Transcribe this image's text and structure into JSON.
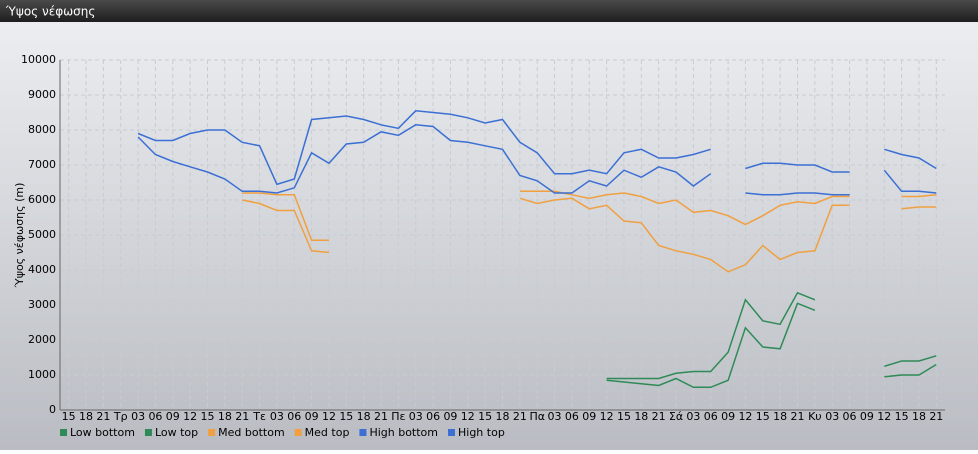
{
  "chart_data": {
    "type": "line",
    "title": "Ύψος νέφωσης",
    "y_label": "Ύψος νέφωσης (m)",
    "categories": [
      "15",
      "18",
      "21",
      "Τρ",
      "03",
      "06",
      "09",
      "12",
      "15",
      "18",
      "21",
      "Τε",
      "03",
      "06",
      "09",
      "12",
      "15",
      "18",
      "21",
      "Πε",
      "03",
      "06",
      "09",
      "12",
      "15",
      "18",
      "21",
      "Πα",
      "03",
      "06",
      "09",
      "12",
      "15",
      "18",
      "21",
      "Σά",
      "03",
      "06",
      "09",
      "12",
      "15",
      "18",
      "21",
      "Κυ",
      "03",
      "06",
      "09",
      "12",
      "15",
      "18",
      "21"
    ],
    "ylim": [
      0,
      10000
    ],
    "yticks": [
      0,
      1000,
      2000,
      3000,
      4000,
      5000,
      6000,
      7000,
      8000,
      9000,
      10000
    ],
    "grid": true,
    "series": [
      {
        "name": "Low bottom",
        "color": "#2e8b57",
        "values": [
          null,
          null,
          null,
          null,
          null,
          null,
          null,
          null,
          null,
          null,
          null,
          null,
          null,
          null,
          null,
          null,
          null,
          null,
          null,
          null,
          null,
          null,
          null,
          null,
          null,
          null,
          null,
          null,
          null,
          null,
          null,
          850,
          800,
          750,
          700,
          900,
          650,
          650,
          850,
          2350,
          1800,
          1750,
          3050,
          2850,
          null,
          null,
          null,
          950,
          1000,
          1000,
          1300
        ]
      },
      {
        "name": "Low top",
        "color": "#2e8b57",
        "values": [
          null,
          null,
          null,
          null,
          null,
          null,
          null,
          null,
          null,
          null,
          null,
          null,
          null,
          null,
          null,
          null,
          null,
          null,
          null,
          null,
          null,
          null,
          null,
          null,
          null,
          null,
          null,
          null,
          null,
          null,
          null,
          900,
          900,
          900,
          900,
          1050,
          1100,
          1100,
          1650,
          3150,
          2550,
          2450,
          3350,
          3150,
          null,
          null,
          null,
          1250,
          1400,
          1400,
          1550
        ]
      },
      {
        "name": "Med bottom",
        "color": "#f0a040",
        "values": [
          null,
          null,
          null,
          null,
          null,
          null,
          null,
          null,
          null,
          null,
          6000,
          5900,
          5700,
          5700,
          4550,
          4500,
          null,
          null,
          null,
          null,
          null,
          null,
          null,
          null,
          null,
          null,
          6050,
          5900,
          6000,
          6050,
          5750,
          5850,
          5400,
          5350,
          4700,
          4550,
          4450,
          4300,
          3950,
          4150,
          4700,
          4300,
          4500,
          4550,
          5850,
          5850,
          null,
          null,
          5750,
          5800,
          5800
        ]
      },
      {
        "name": "Med top",
        "color": "#f0a040",
        "values": [
          null,
          null,
          null,
          null,
          null,
          null,
          null,
          null,
          null,
          null,
          6200,
          6200,
          6150,
          6150,
          4850,
          4850,
          null,
          null,
          null,
          null,
          null,
          null,
          null,
          null,
          null,
          null,
          6250,
          6250,
          6250,
          6150,
          6050,
          6150,
          6200,
          6100,
          5900,
          6000,
          5650,
          5700,
          5550,
          5300,
          5550,
          5850,
          5950,
          5900,
          6100,
          6100,
          null,
          null,
          6100,
          6100,
          6150
        ]
      },
      {
        "name": "High bottom",
        "color": "#3b6fd4",
        "values": [
          null,
          null,
          null,
          null,
          7800,
          7300,
          7100,
          6950,
          6800,
          6600,
          6250,
          6250,
          6200,
          6350,
          7350,
          7050,
          7600,
          7650,
          7950,
          7850,
          8150,
          8100,
          7700,
          7650,
          7550,
          7450,
          6700,
          6550,
          6200,
          6200,
          6550,
          6400,
          6850,
          6650,
          6950,
          6800,
          6400,
          6750,
          null,
          6200,
          6150,
          6150,
          6200,
          6200,
          6150,
          6150,
          null,
          6850,
          6250,
          6250,
          6200
        ]
      },
      {
        "name": "High top",
        "color": "#3b6fd4",
        "values": [
          null,
          null,
          null,
          null,
          7900,
          7700,
          7700,
          7900,
          8000,
          8000,
          7650,
          7550,
          6450,
          6600,
          8300,
          8350,
          8400,
          8300,
          8150,
          8050,
          8550,
          8500,
          8450,
          8350,
          8200,
          8300,
          7650,
          7350,
          6750,
          6750,
          6850,
          6750,
          7350,
          7450,
          7200,
          7200,
          7300,
          7450,
          null,
          6900,
          7050,
          7050,
          7000,
          7000,
          6800,
          6800,
          null,
          7450,
          7300,
          7200,
          6900
        ]
      }
    ]
  }
}
